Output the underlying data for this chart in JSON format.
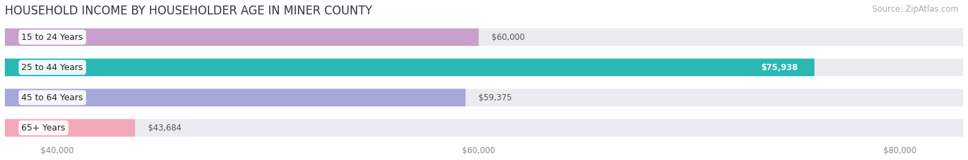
{
  "title": "HOUSEHOLD INCOME BY HOUSEHOLDER AGE IN MINER COUNTY",
  "source": "Source: ZipAtlas.com",
  "categories": [
    "15 to 24 Years",
    "25 to 44 Years",
    "45 to 64 Years",
    "65+ Years"
  ],
  "values": [
    60000,
    75938,
    59375,
    43684
  ],
  "bar_colors": [
    "#c9a0cc",
    "#2ab8b2",
    "#a8a8d8",
    "#f4a8bc"
  ],
  "value_labels": [
    "$60,000",
    "$75,938",
    "$59,375",
    "$43,684"
  ],
  "label_on_bar": [
    false,
    true,
    false,
    false
  ],
  "xlim": [
    37500,
    83000
  ],
  "xticks": [
    40000,
    60000,
    80000
  ],
  "xticklabels": [
    "$40,000",
    "$60,000",
    "$80,000"
  ],
  "background_color": "#ffffff",
  "bar_background_color": "#ebebf0",
  "title_fontsize": 12,
  "source_fontsize": 8.5,
  "bar_height": 0.58,
  "figsize": [
    14.06,
    2.33
  ],
  "dpi": 100
}
